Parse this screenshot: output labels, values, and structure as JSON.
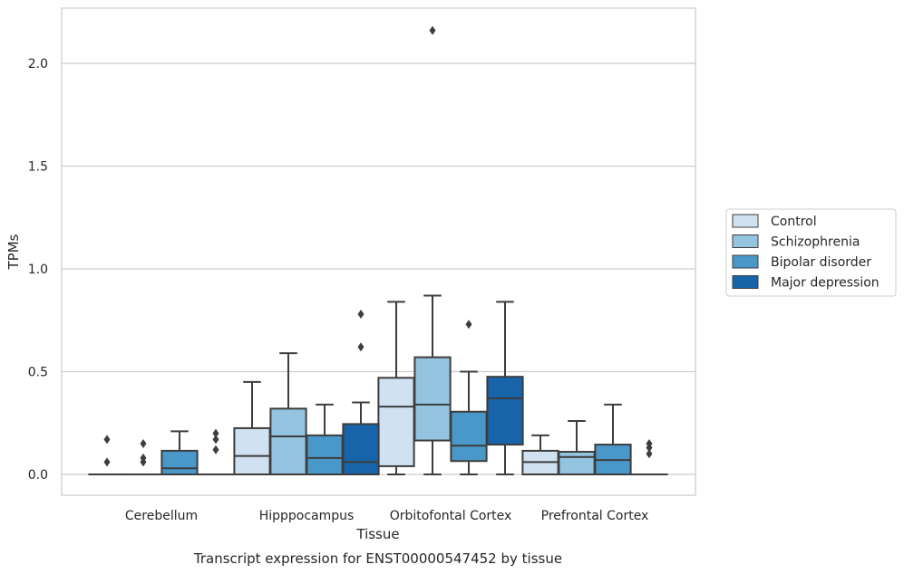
{
  "chart_data": {
    "type": "box",
    "caption": "Transcript expression for ENST00000547452 by tissue",
    "xlabel": "Tissue",
    "ylabel": "TPMs",
    "ylim": [
      -0.1,
      2.27
    ],
    "yticks": [
      "0.0",
      "0.5",
      "1.0",
      "1.5",
      "2.0"
    ],
    "ytick_values": [
      0.0,
      0.5,
      1.0,
      1.5,
      2.0
    ],
    "grid": "horizontal",
    "legend_position": "right",
    "categories": [
      "Cerebellum",
      "Hipppocampus",
      "Orbitofontal Cortex",
      "Prefrontal Cortex"
    ],
    "series": [
      {
        "name": "Control",
        "color": "#d0e1f2",
        "boxes": [
          {
            "whislo": 0.0,
            "q1": 0.0,
            "med": 0.0,
            "q3": 0.0,
            "whishi": 0.0,
            "fliers": [
              0.06,
              0.17
            ]
          },
          {
            "whislo": 0.0,
            "q1": 0.0,
            "med": 0.09,
            "q3": 0.225,
            "whishi": 0.45,
            "fliers": []
          },
          {
            "whislo": 0.0,
            "q1": 0.04,
            "med": 0.33,
            "q3": 0.47,
            "whishi": 0.84,
            "fliers": []
          },
          {
            "whislo": 0.0,
            "q1": 0.0,
            "med": 0.06,
            "q3": 0.115,
            "whishi": 0.19,
            "fliers": []
          }
        ]
      },
      {
        "name": "Schizophrenia",
        "color": "#94c4df",
        "boxes": [
          {
            "whislo": 0.0,
            "q1": 0.0,
            "med": 0.0,
            "q3": 0.0,
            "whishi": 0.0,
            "fliers": [
              0.06,
              0.08,
              0.15
            ]
          },
          {
            "whislo": 0.0,
            "q1": 0.0,
            "med": 0.185,
            "q3": 0.32,
            "whishi": 0.59,
            "fliers": []
          },
          {
            "whislo": 0.0,
            "q1": 0.165,
            "med": 0.34,
            "q3": 0.57,
            "whishi": 0.87,
            "fliers": [
              2.16
            ]
          },
          {
            "whislo": 0.0,
            "q1": 0.0,
            "med": 0.085,
            "q3": 0.11,
            "whishi": 0.26,
            "fliers": []
          }
        ]
      },
      {
        "name": "Bipolar disorder",
        "color": "#4a98c9",
        "boxes": [
          {
            "whislo": 0.0,
            "q1": 0.0,
            "med": 0.03,
            "q3": 0.115,
            "whishi": 0.21,
            "fliers": []
          },
          {
            "whislo": 0.0,
            "q1": 0.0,
            "med": 0.08,
            "q3": 0.19,
            "whishi": 0.34,
            "fliers": []
          },
          {
            "whislo": 0.0,
            "q1": 0.065,
            "med": 0.14,
            "q3": 0.305,
            "whishi": 0.5,
            "fliers": [
              0.73
            ]
          },
          {
            "whislo": 0.0,
            "q1": 0.0,
            "med": 0.07,
            "q3": 0.145,
            "whishi": 0.34,
            "fliers": []
          }
        ]
      },
      {
        "name": "Major depression",
        "color": "#1764ab",
        "boxes": [
          {
            "whislo": 0.0,
            "q1": 0.0,
            "med": 0.0,
            "q3": 0.0,
            "whishi": 0.0,
            "fliers": [
              0.12,
              0.17,
              0.2
            ]
          },
          {
            "whislo": 0.0,
            "q1": 0.0,
            "med": 0.06,
            "q3": 0.245,
            "whishi": 0.35,
            "fliers": [
              0.62,
              0.78
            ]
          },
          {
            "whislo": 0.0,
            "q1": 0.145,
            "med": 0.37,
            "q3": 0.475,
            "whishi": 0.84,
            "fliers": []
          },
          {
            "whislo": 0.0,
            "q1": 0.0,
            "med": 0.0,
            "q3": 0.0,
            "whishi": 0.0,
            "fliers": [
              0.1,
              0.13,
              0.15
            ]
          }
        ]
      }
    ]
  }
}
